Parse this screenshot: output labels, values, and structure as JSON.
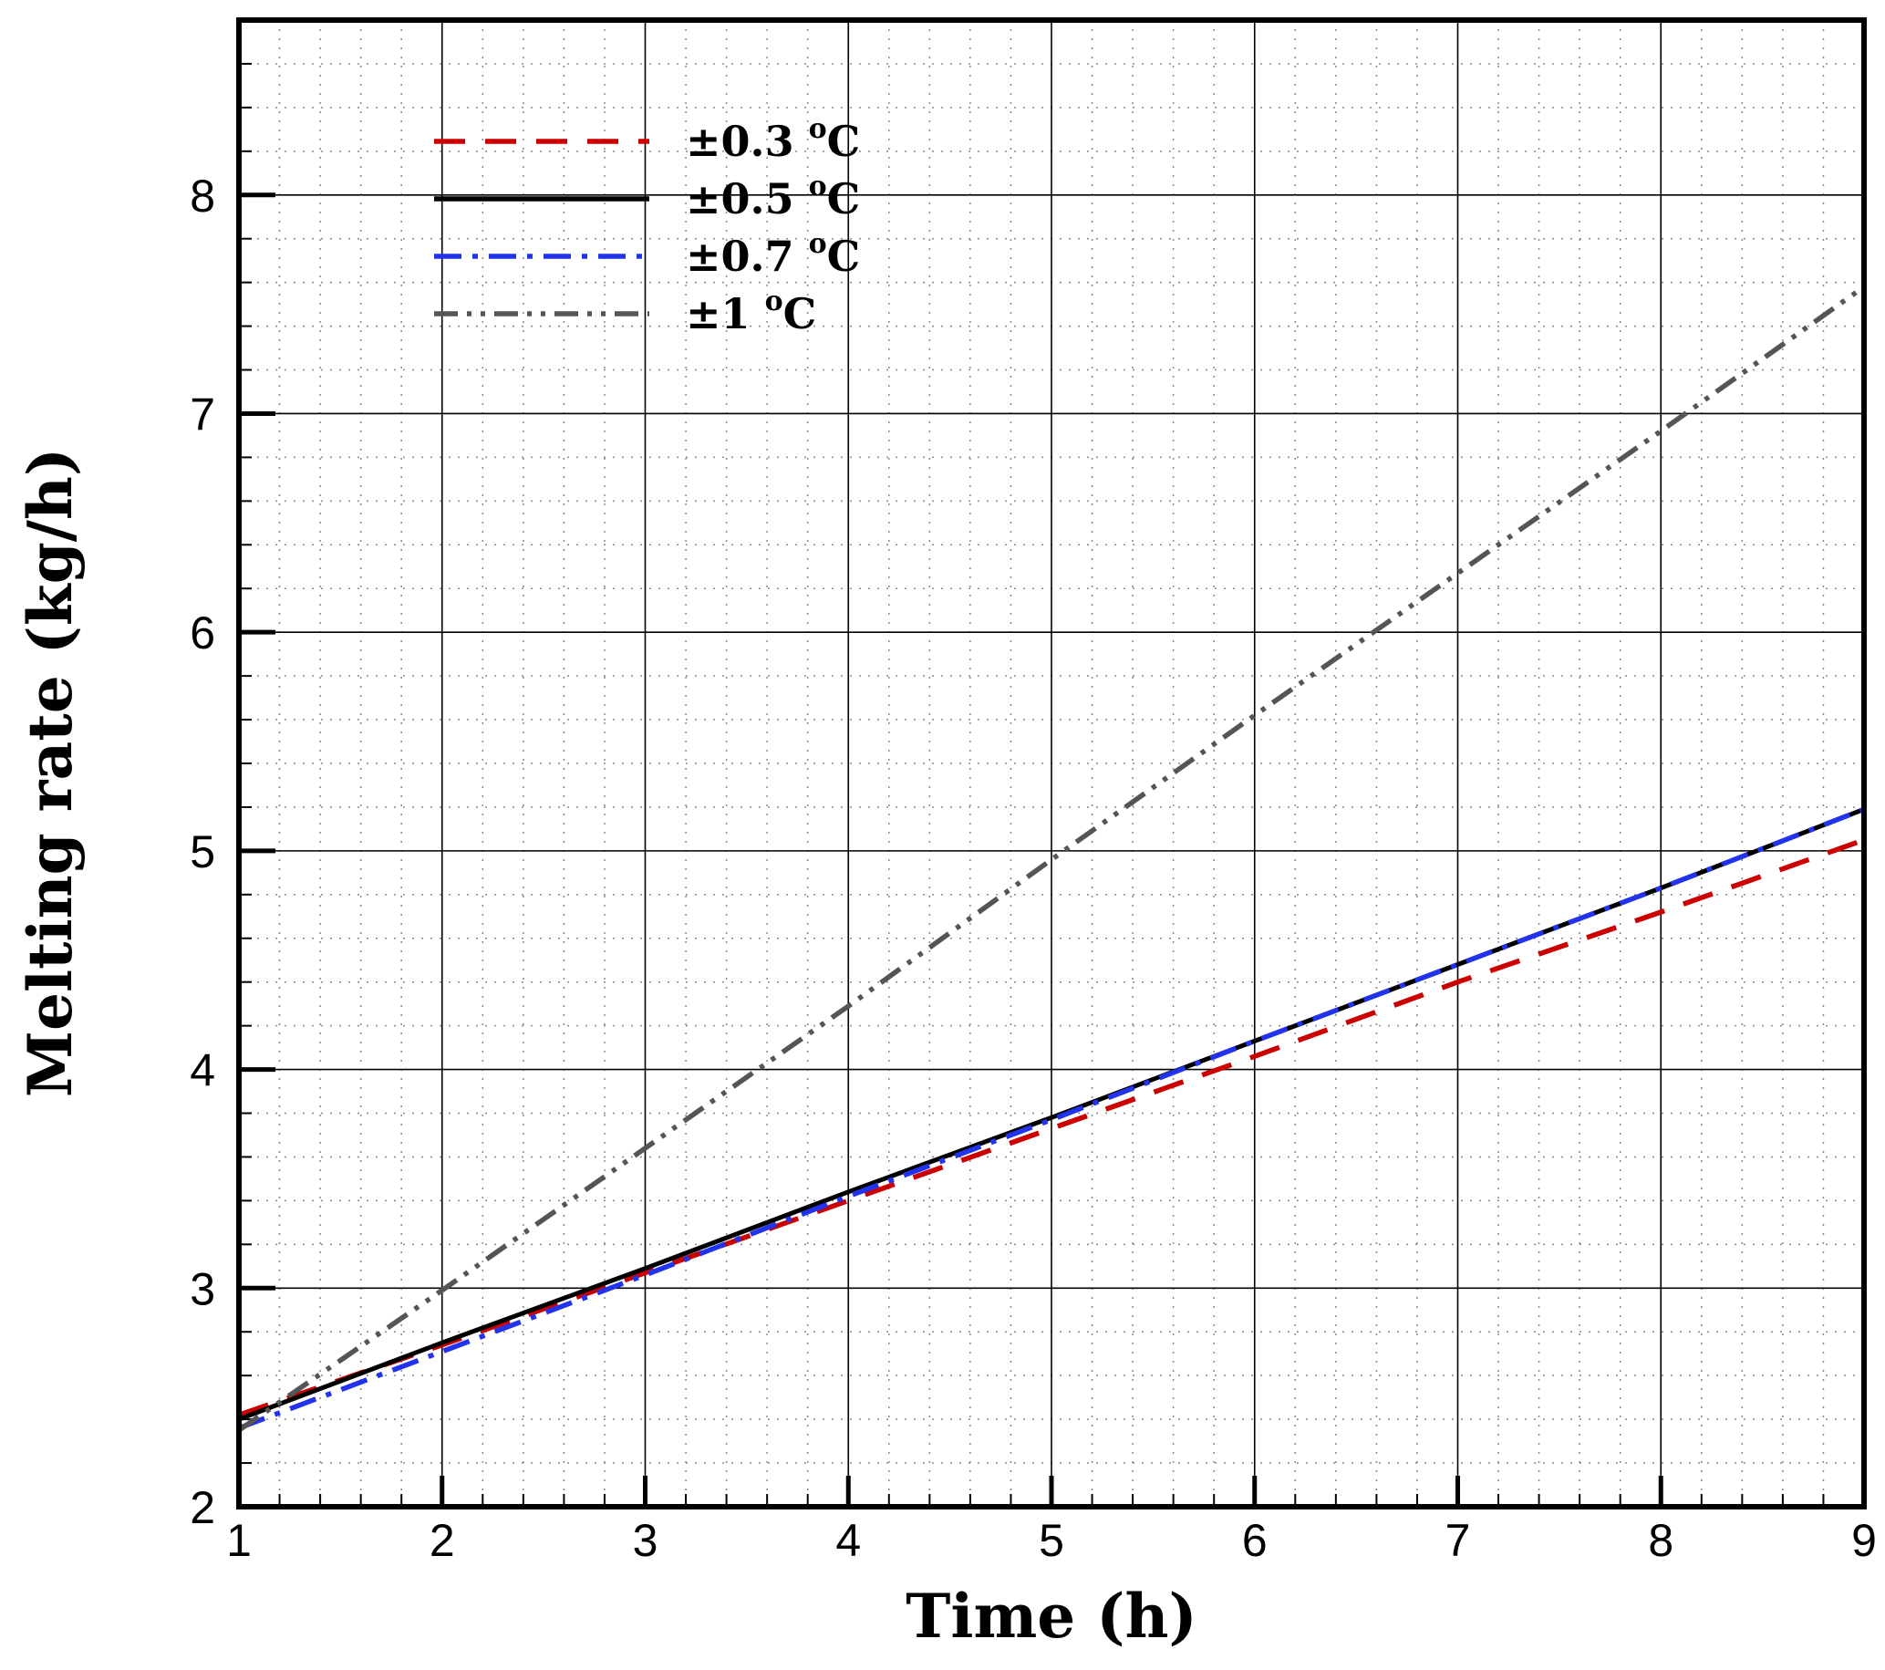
{
  "chart_data": {
    "type": "line",
    "xlabel": "Time (h)",
    "ylabel": "Melting rate (kg/h)",
    "xlim": [
      1,
      9
    ],
    "ylim": [
      2,
      8.8
    ],
    "x_ticks": [
      1,
      2,
      3,
      4,
      5,
      6,
      7,
      8,
      9
    ],
    "y_ticks": [
      2,
      3,
      4,
      5,
      6,
      7,
      8
    ],
    "grid": true,
    "legend_position": "top-left",
    "series": [
      {
        "name": "±0.3 °C",
        "legend_main": "±0.3 ",
        "legend_sup": "o",
        "legend_unit": "C",
        "color": "#cc0000",
        "dash": "dashed",
        "x": [
          1,
          2,
          3,
          4,
          5,
          6,
          7,
          8,
          9
        ],
        "y": [
          2.42,
          2.74,
          3.07,
          3.4,
          3.73,
          4.06,
          4.4,
          4.72,
          5.05
        ]
      },
      {
        "name": "±0.5 °C",
        "legend_main": "±0.5 ",
        "legend_sup": "o",
        "legend_unit": "C",
        "color": "#000000",
        "dash": "solid",
        "x": [
          1,
          2,
          3,
          4,
          5,
          6,
          7,
          8,
          9
        ],
        "y": [
          2.4,
          2.75,
          3.09,
          3.44,
          3.78,
          4.13,
          4.48,
          4.83,
          5.19
        ]
      },
      {
        "name": "±0.7 °C",
        "legend_main": "±0.7 ",
        "legend_sup": "o",
        "legend_unit": "C",
        "color": "#2233ee",
        "dash": "dashdot",
        "x": [
          1,
          2,
          3,
          4,
          5,
          6,
          7,
          8,
          9
        ],
        "y": [
          2.36,
          2.71,
          3.06,
          3.42,
          3.77,
          4.13,
          4.48,
          4.83,
          5.19
        ]
      },
      {
        "name": "±1 °C",
        "legend_main": "±1 ",
        "legend_sup": "o",
        "legend_unit": "C",
        "color": "#555555",
        "dash": "dashdotdot",
        "x": [
          1,
          2,
          3,
          4,
          5,
          6,
          7,
          8,
          9
        ],
        "y": [
          2.35,
          2.99,
          3.64,
          4.29,
          4.96,
          5.62,
          6.27,
          6.92,
          7.58
        ]
      }
    ]
  }
}
